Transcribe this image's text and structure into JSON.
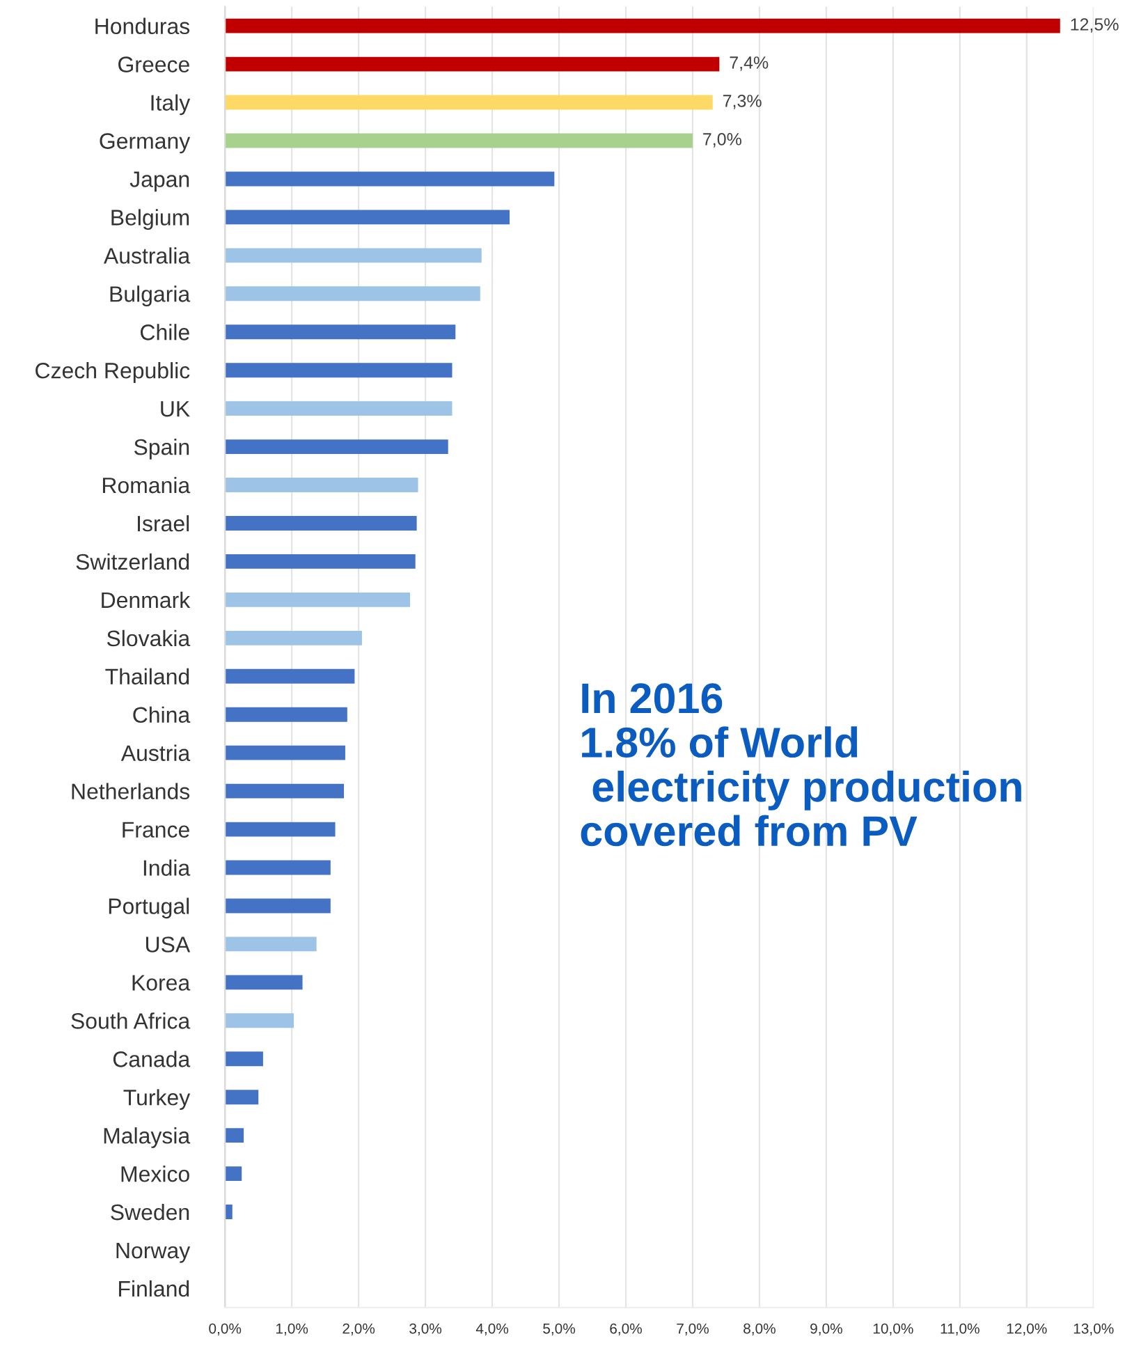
{
  "chart_data": {
    "type": "bar",
    "orientation": "horizontal",
    "categories": [
      "Honduras",
      "Greece",
      "Italy",
      "Germany",
      "Japan",
      "Belgium",
      "Australia",
      "Bulgaria",
      "Chile",
      "Czech Republic",
      "UK",
      "Spain",
      "Romania",
      "Israel",
      "Switzerland",
      "Denmark",
      "Slovakia",
      "Thailand",
      "China",
      "Austria",
      "Netherlands",
      "France",
      "India",
      "Portugal",
      "USA",
      "Korea",
      "South Africa",
      "Canada",
      "Turkey",
      "Malaysia",
      "Mexico",
      "Sweden",
      "Norway",
      "Finland"
    ],
    "values": [
      12.5,
      7.4,
      7.3,
      7.0,
      4.93,
      4.26,
      3.84,
      3.82,
      3.45,
      3.4,
      3.4,
      3.34,
      2.89,
      2.87,
      2.85,
      2.77,
      2.05,
      1.94,
      1.83,
      1.8,
      1.78,
      1.65,
      1.58,
      1.58,
      1.37,
      1.16,
      1.03,
      0.57,
      0.5,
      0.28,
      0.25,
      0.11,
      0,
      0
    ],
    "colors": [
      "#c00000",
      "#c00000",
      "#ffd966",
      "#a9d18e",
      "#4472c4",
      "#4472c4",
      "#9dc3e6",
      "#9dc3e6",
      "#4472c4",
      "#4472c4",
      "#9dc3e6",
      "#4472c4",
      "#9dc3e6",
      "#4472c4",
      "#4472c4",
      "#9dc3e6",
      "#9dc3e6",
      "#4472c4",
      "#4472c4",
      "#4472c4",
      "#4472c4",
      "#4472c4",
      "#4472c4",
      "#4472c4",
      "#9dc3e6",
      "#4472c4",
      "#9dc3e6",
      "#4472c4",
      "#4472c4",
      "#4472c4",
      "#4472c4",
      "#4472c4",
      "#4472c4",
      "#4472c4"
    ],
    "value_labels": [
      "12,5%",
      "7,4%",
      "7,3%",
      "7,0%",
      null,
      null,
      null,
      null,
      null,
      null,
      null,
      null,
      null,
      null,
      null,
      null,
      null,
      null,
      null,
      null,
      null,
      null,
      null,
      null,
      null,
      null,
      null,
      null,
      null,
      null,
      null,
      null,
      null,
      null
    ],
    "xlim": [
      0,
      13
    ],
    "xticks": [
      {
        "value": 0,
        "label": "0,0%"
      },
      {
        "value": 1,
        "label": "1,0%"
      },
      {
        "value": 2,
        "label": "2,0%"
      },
      {
        "value": 3,
        "label": "3,0%"
      },
      {
        "value": 4,
        "label": "4,0%"
      },
      {
        "value": 5,
        "label": "5,0%"
      },
      {
        "value": 6,
        "label": "6,0%"
      },
      {
        "value": 7,
        "label": "7,0%"
      },
      {
        "value": 8,
        "label": "8,0%"
      },
      {
        "value": 9,
        "label": "9,0%"
      },
      {
        "value": 10,
        "label": "10,0%"
      },
      {
        "value": 11,
        "label": "11,0%"
      },
      {
        "value": 12,
        "label": "12,0%"
      },
      {
        "value": 13,
        "label": "13,0%"
      }
    ],
    "grid": "x",
    "annotations": [
      "In 2016\n1.8% of World\n electricity production\ncovered from PV"
    ]
  }
}
